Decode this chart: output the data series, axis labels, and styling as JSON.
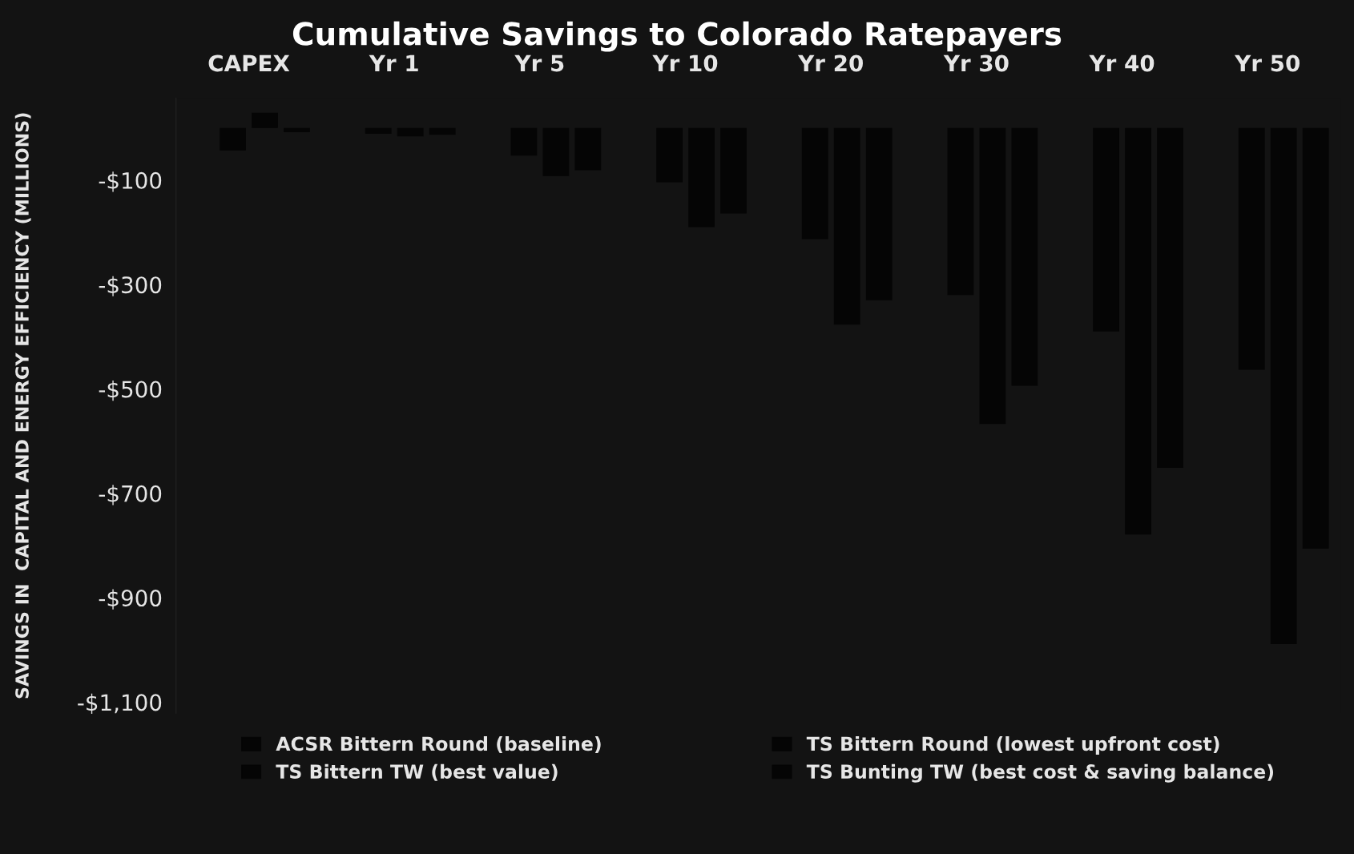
{
  "chart_data": {
    "type": "bar",
    "title": "Cumulative Savings to Colorado Ratepayers",
    "ylabel": "SAVINGS IN  CAPITAL AND ENERGY EFFICIENCY (MILLIONS)",
    "categories": [
      "CAPEX",
      "Yr 1",
      "Yr 5",
      "Yr 10",
      "Yr 20",
      "Yr 30",
      "Yr 40",
      "Yr 50"
    ],
    "series": [
      {
        "name": "ACSR Bittern Round (baseline)",
        "color": "#050505",
        "values": [
          null,
          null,
          null,
          null,
          null,
          null,
          null,
          null
        ]
      },
      {
        "name": "TS Bittern Round (lowest upfront cost)",
        "color": "#050505",
        "values": [
          -43,
          -11,
          -53,
          -104,
          -213,
          -320,
          -390,
          -463
        ]
      },
      {
        "name": "TS Bittern TW (best value)",
        "color": "#050505",
        "values": [
          29,
          -16,
          -92,
          -190,
          -377,
          -567,
          -779,
          -989
        ]
      },
      {
        "name": "TS Bunting TW (best cost & saving balance)",
        "color": "#050505",
        "values": [
          -8,
          -13,
          -81,
          -164,
          -330,
          -494,
          -651,
          -806
        ]
      }
    ],
    "ylim": [
      -1121,
      57
    ],
    "yticks": [
      {
        "value": -100,
        "label": "-$100"
      },
      {
        "value": -300,
        "label": "-$300"
      },
      {
        "value": -500,
        "label": "-$500"
      },
      {
        "value": -700,
        "label": "-$700"
      },
      {
        "value": -900,
        "label": "-$900"
      },
      {
        "value": -1100,
        "label": "-$1,100"
      }
    ],
    "grid": false,
    "legend": "bottom"
  }
}
